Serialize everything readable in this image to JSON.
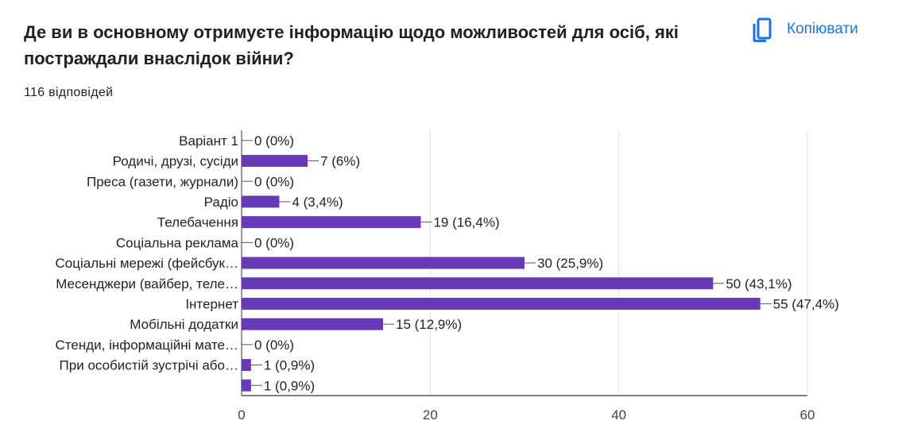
{
  "header": {
    "title": "Де ви в основному отримуєте інформацію щодо можливостей для осіб, які постраждали внаслідок війни?",
    "responses": "116 відповідей",
    "copy_label": "Копіювати",
    "copy_icon": "copy-icon"
  },
  "colors": {
    "bar": "#673ab7",
    "accent": "#1a73e8",
    "grid": "#e0e0e0",
    "axis": "#333333"
  },
  "chart_data": {
    "type": "bar",
    "orientation": "horizontal",
    "categories": [
      "Варіант 1",
      "Родичі, друзі, сусіди",
      "Преса (газети, журнали)",
      "Радіо",
      "Телебачення",
      "Соціальна реклама",
      "Соціальні мережі (фейсбук…",
      "Месенджери (вайбер, теле…",
      "Інтернет",
      "Мобільні додатки",
      "Стенди, інформаційні мате…",
      "При особистій зустрічі або…",
      ""
    ],
    "values": [
      0,
      7,
      0,
      4,
      19,
      0,
      30,
      50,
      55,
      15,
      0,
      1,
      1
    ],
    "data_labels": [
      "0 (0%)",
      "7 (6%)",
      "0 (0%)",
      "4 (3,4%)",
      "19 (16,4%)",
      "0 (0%)",
      "30 (25,9%)",
      "50 (43,1%)",
      "55 (47,4%)",
      "15 (12,9%)",
      "0 (0%)",
      "1 (0,9%)",
      "1 (0,9%)"
    ],
    "xlim": [
      0,
      60
    ],
    "xticks": [
      "0",
      "20",
      "40",
      "60"
    ],
    "grid": true,
    "title": "",
    "xlabel": "",
    "ylabel": ""
  }
}
